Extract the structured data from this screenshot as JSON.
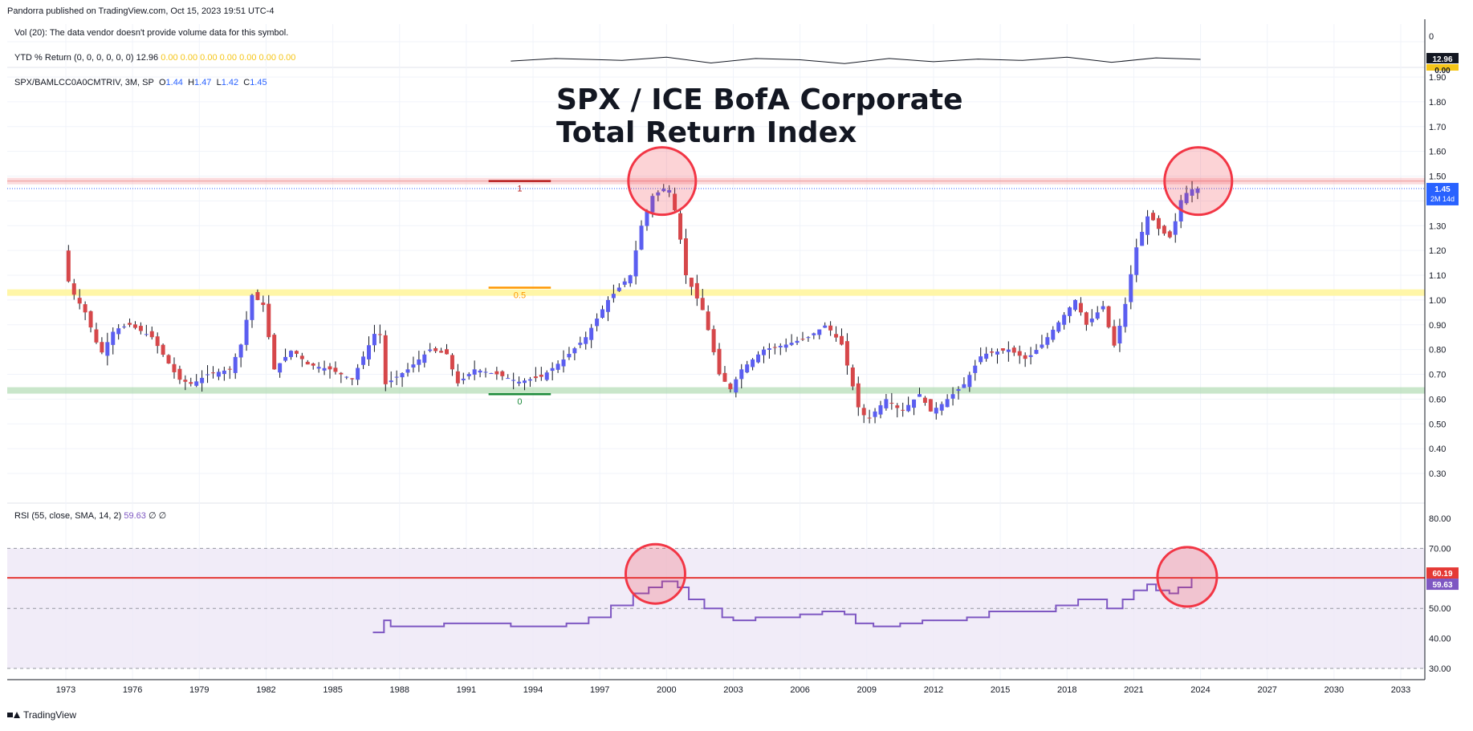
{
  "header": {
    "publisher_line": "Pandorra published on TradingView.com, Oct 15, 2023 19:51 UTC-4"
  },
  "footer": {
    "brand": "TradingView"
  },
  "legends": {
    "vol": "Vol (20): The data vendor doesn't provide volume data for this symbol.",
    "ytd_label": "YTD % Return (0, 0, 0, 0, 0, 0)",
    "ytd_value": "12.96",
    "ytd_zeros": "0.00  0.00  0.00  0.00  0.00  0.00  0.00",
    "main_symbol": "SPX/BAMLCC0A0CMTRIV, 3M, SP",
    "ohlc": {
      "o_label": "O",
      "o": "1.44",
      "h_label": "H",
      "h": "1.47",
      "l_label": "L",
      "l": "1.42",
      "c_label": "C",
      "c": "1.45"
    },
    "rsi_label": "RSI (55, close, SMA, 14, 2)",
    "rsi_value": "59.63",
    "rsi_extra": "∅  ∅"
  },
  "annotation": {
    "title_line1": "SPX / ICE BofA Corporate",
    "title_line2": "Total Return Index"
  },
  "fib_labels": {
    "top": "1",
    "mid": "0.5",
    "bottom": "0"
  },
  "scale_badges": {
    "vol_zero": "0",
    "ytd_value": "12.96",
    "ytd_zero": "0.00",
    "price_value": "1.45",
    "price_countdown": "2M 14d",
    "rsi_level": "60.19",
    "rsi_value": "59.63"
  },
  "colors": {
    "up": "#5b5ef0",
    "down": "#d6474a",
    "resistance": "#f7b0b4",
    "support": "#a5d6a7",
    "mid_band": "#fff59d",
    "rsi_line": "#7e57c2",
    "rsi_band": "#ede7f6",
    "circle_fill": "rgba(242,54,69,0.22)",
    "circle_stroke": "#f23645"
  },
  "chart_data": {
    "type": "candlestick",
    "price_axis": {
      "ticks": [
        "1.90",
        "1.80",
        "1.70",
        "1.60",
        "1.50",
        "1.40",
        "1.30",
        "1.20",
        "1.10",
        "1.00",
        "0.90",
        "0.80",
        "0.70",
        "0.60",
        "0.50",
        "0.40",
        "0.30"
      ]
    },
    "time_axis": {
      "ticks": [
        "1973",
        "1976",
        "1979",
        "1982",
        "1985",
        "1988",
        "1991",
        "1994",
        "1997",
        "2000",
        "2003",
        "2006",
        "2009",
        "2012",
        "2015",
        "2018",
        "2021",
        "2024",
        "2027",
        "2030",
        "2033"
      ]
    },
    "rsi_axis": {
      "ticks": [
        "80.00",
        "70.00",
        "60.00",
        "50.00",
        "40.00",
        "30.00"
      ]
    },
    "horizontal_levels": {
      "resistance": 1.48,
      "mid_band": 1.03,
      "support": 0.635,
      "last_price": 1.45
    },
    "fib_levels": {
      "top": 1.48,
      "mid": 1.05,
      "bottom": 0.62,
      "start_year": 1992.0,
      "end_year": 1994.8
    },
    "rsi_levels": {
      "upper": 70,
      "middle": 50,
      "lower": 30,
      "signal": 60.19
    },
    "highlight_circles": [
      {
        "pane": "price",
        "x": 1999.8,
        "y": 1.48
      },
      {
        "pane": "price",
        "x": 2023.9,
        "y": 1.48
      },
      {
        "pane": "rsi",
        "x": 1999.5,
        "y": 61.5
      },
      {
        "pane": "rsi",
        "x": 2023.4,
        "y": 60.5
      }
    ],
    "price_path": [
      [
        1973.0,
        1.2
      ],
      [
        1973.3,
        1.05
      ],
      [
        1974.0,
        0.95
      ],
      [
        1974.7,
        0.78
      ],
      [
        1975.3,
        0.88
      ],
      [
        1976.0,
        0.9
      ],
      [
        1977.0,
        0.85
      ],
      [
        1978.2,
        0.68
      ],
      [
        1978.8,
        0.66
      ],
      [
        1979.5,
        0.7
      ],
      [
        1980.5,
        0.72
      ],
      [
        1981.0,
        0.82
      ],
      [
        1981.5,
        1.02
      ],
      [
        1982.0,
        0.98
      ],
      [
        1982.5,
        0.72
      ],
      [
        1983.3,
        0.8
      ],
      [
        1984.0,
        0.74
      ],
      [
        1985.0,
        0.72
      ],
      [
        1986.0,
        0.68
      ],
      [
        1987.2,
        0.9
      ],
      [
        1987.5,
        0.66
      ],
      [
        1988.5,
        0.72
      ],
      [
        1989.5,
        0.8
      ],
      [
        1990.3,
        0.78
      ],
      [
        1990.7,
        0.66
      ],
      [
        1991.5,
        0.72
      ],
      [
        1992.5,
        0.7
      ],
      [
        1993.5,
        0.67
      ],
      [
        1994.5,
        0.69
      ],
      [
        1995.5,
        0.76
      ],
      [
        1996.5,
        0.85
      ],
      [
        1997.5,
        1.0
      ],
      [
        1998.5,
        1.1
      ],
      [
        1999.0,
        1.3
      ],
      [
        1999.5,
        1.42
      ],
      [
        2000.2,
        1.46
      ],
      [
        2000.6,
        1.33
      ],
      [
        2001.0,
        1.1
      ],
      [
        2001.8,
        0.95
      ],
      [
        2002.5,
        0.7
      ],
      [
        2003.0,
        0.64
      ],
      [
        2003.5,
        0.72
      ],
      [
        2004.5,
        0.8
      ],
      [
        2005.5,
        0.82
      ],
      [
        2006.5,
        0.85
      ],
      [
        2007.3,
        0.9
      ],
      [
        2008.0,
        0.82
      ],
      [
        2008.8,
        0.55
      ],
      [
        2009.2,
        0.52
      ],
      [
        2010.0,
        0.6
      ],
      [
        2010.7,
        0.55
      ],
      [
        2011.5,
        0.62
      ],
      [
        2012.0,
        0.55
      ],
      [
        2012.5,
        0.58
      ],
      [
        2013.5,
        0.66
      ],
      [
        2014.3,
        0.78
      ],
      [
        2015.5,
        0.8
      ],
      [
        2016.3,
        0.76
      ],
      [
        2017.0,
        0.82
      ],
      [
        2018.0,
        0.94
      ],
      [
        2018.5,
        1.0
      ],
      [
        2019.0,
        0.9
      ],
      [
        2019.8,
        0.98
      ],
      [
        2020.2,
        0.8
      ],
      [
        2020.7,
        0.96
      ],
      [
        2021.2,
        1.2
      ],
      [
        2021.8,
        1.35
      ],
      [
        2022.3,
        1.28
      ],
      [
        2022.8,
        1.25
      ],
      [
        2023.3,
        1.42
      ],
      [
        2023.8,
        1.45
      ]
    ],
    "rsi_path": [
      [
        1986.8,
        42
      ],
      [
        1987.3,
        46
      ],
      [
        1987.6,
        44
      ],
      [
        1989.0,
        44
      ],
      [
        1990.0,
        45
      ],
      [
        1991.0,
        45
      ],
      [
        1992.0,
        45
      ],
      [
        1993.0,
        44
      ],
      [
        1994.5,
        44
      ],
      [
        1995.5,
        45
      ],
      [
        1996.5,
        47
      ],
      [
        1997.5,
        51
      ],
      [
        1998.5,
        55
      ],
      [
        1999.2,
        57
      ],
      [
        1999.8,
        59
      ],
      [
        2000.5,
        57
      ],
      [
        2001.0,
        53
      ],
      [
        2001.7,
        50
      ],
      [
        2002.5,
        47
      ],
      [
        2003.0,
        46
      ],
      [
        2004.0,
        47
      ],
      [
        2005.0,
        47
      ],
      [
        2006.0,
        48
      ],
      [
        2007.0,
        49
      ],
      [
        2008.0,
        48
      ],
      [
        2008.5,
        45
      ],
      [
        2009.3,
        44
      ],
      [
        2010.5,
        45
      ],
      [
        2011.5,
        46
      ],
      [
        2012.5,
        46
      ],
      [
        2013.5,
        47
      ],
      [
        2014.5,
        49
      ],
      [
        2015.5,
        49
      ],
      [
        2016.5,
        49
      ],
      [
        2017.5,
        51
      ],
      [
        2018.5,
        53
      ],
      [
        2019.0,
        53
      ],
      [
        2019.8,
        50
      ],
      [
        2020.5,
        53
      ],
      [
        2021.0,
        56
      ],
      [
        2021.6,
        58
      ],
      [
        2022.0,
        56
      ],
      [
        2022.6,
        55
      ],
      [
        2023.0,
        57
      ],
      [
        2023.6,
        60
      ]
    ],
    "ytd_path": [
      [
        1993.0,
        12.7
      ],
      [
        1995.0,
        13.1
      ],
      [
        1998.0,
        12.8
      ],
      [
        2000.0,
        13.3
      ],
      [
        2002.0,
        12.4
      ],
      [
        2004.0,
        13.1
      ],
      [
        2006.0,
        12.9
      ],
      [
        2008.0,
        12.3
      ],
      [
        2010.0,
        13.1
      ],
      [
        2012.0,
        12.6
      ],
      [
        2014.0,
        13.0
      ],
      [
        2016.0,
        12.8
      ],
      [
        2018.0,
        13.3
      ],
      [
        2020.0,
        12.5
      ],
      [
        2022.0,
        13.2
      ],
      [
        2024.0,
        12.96
      ]
    ]
  }
}
